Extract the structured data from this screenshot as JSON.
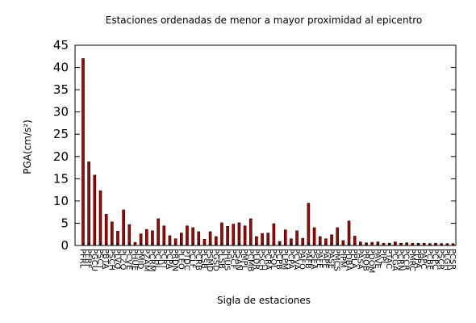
{
  "chart_data": {
    "type": "bar",
    "title": "Estaciones ordenadas de menor a mayor proximidad al epicentro",
    "xlabel": "Sigla de estaciones",
    "ylabel": "PGA(cm/s²)",
    "ylim": [
      0,
      45
    ],
    "yticks": [
      0,
      5,
      10,
      15,
      20,
      25,
      30,
      35,
      40,
      45
    ],
    "grid": false,
    "bar_color": "#b00000",
    "categories": [
      "PFRL",
      "PFRF",
      "PGCU",
      "PSCT",
      "PBTA",
      "PSCH",
      "PLVQ",
      "PLZQ",
      "PCVE",
      "PHUE",
      "PMID",
      "PZAM",
      "PCRM",
      "PCHL",
      "PCRT",
      "PCPA",
      "PRDN",
      "PLEO",
      "PTDC",
      "PCLF",
      "PCRB",
      "PLSB",
      "PSMD",
      "PGSD",
      "PLSB",
      "PHUS",
      "PSCF",
      "PSAN",
      "PMPL",
      "PCMB",
      "PLDR",
      "PSCH",
      "PCRA",
      "PSOL",
      "PCPB",
      "PLPM",
      "PCPA",
      "PCVA",
      "PAFO",
      "PAFB",
      "PSEA",
      "PAFE",
      "PAPE",
      "PASE",
      "PMCS",
      "PIPM",
      "PDBA",
      "PPLA",
      "PASA",
      "PROB",
      "PDOM",
      "PAVE",
      "PIPL",
      "PTAC",
      "PCGA",
      "PCRN",
      "PCCR",
      "PMRC",
      "PPPA",
      "PAPC",
      "PCBE",
      "PCPC",
      "PSCR",
      "PLGH",
      "PCSR"
    ],
    "values": [
      42.0,
      18.8,
      15.8,
      12.3,
      7.0,
      5.3,
      3.2,
      8.0,
      4.7,
      0.7,
      2.6,
      3.6,
      3.3,
      6.0,
      4.4,
      2.2,
      1.5,
      2.8,
      4.4,
      4.0,
      3.1,
      1.4,
      3.1,
      2.0,
      5.1,
      4.3,
      4.8,
      5.1,
      4.4,
      6.0,
      2.0,
      2.7,
      2.8,
      4.9,
      0.9,
      3.5,
      1.5,
      3.3,
      1.6,
      9.5,
      4.0,
      2.0,
      1.5,
      2.4,
      4.0,
      1.1,
      5.5,
      2.1,
      0.8,
      0.6,
      0.7,
      0.8,
      0.5,
      0.5,
      0.8,
      0.5,
      0.6,
      0.5,
      0.5,
      0.5,
      0.4,
      0.5,
      0.4,
      0.4,
      0.4
    ]
  }
}
